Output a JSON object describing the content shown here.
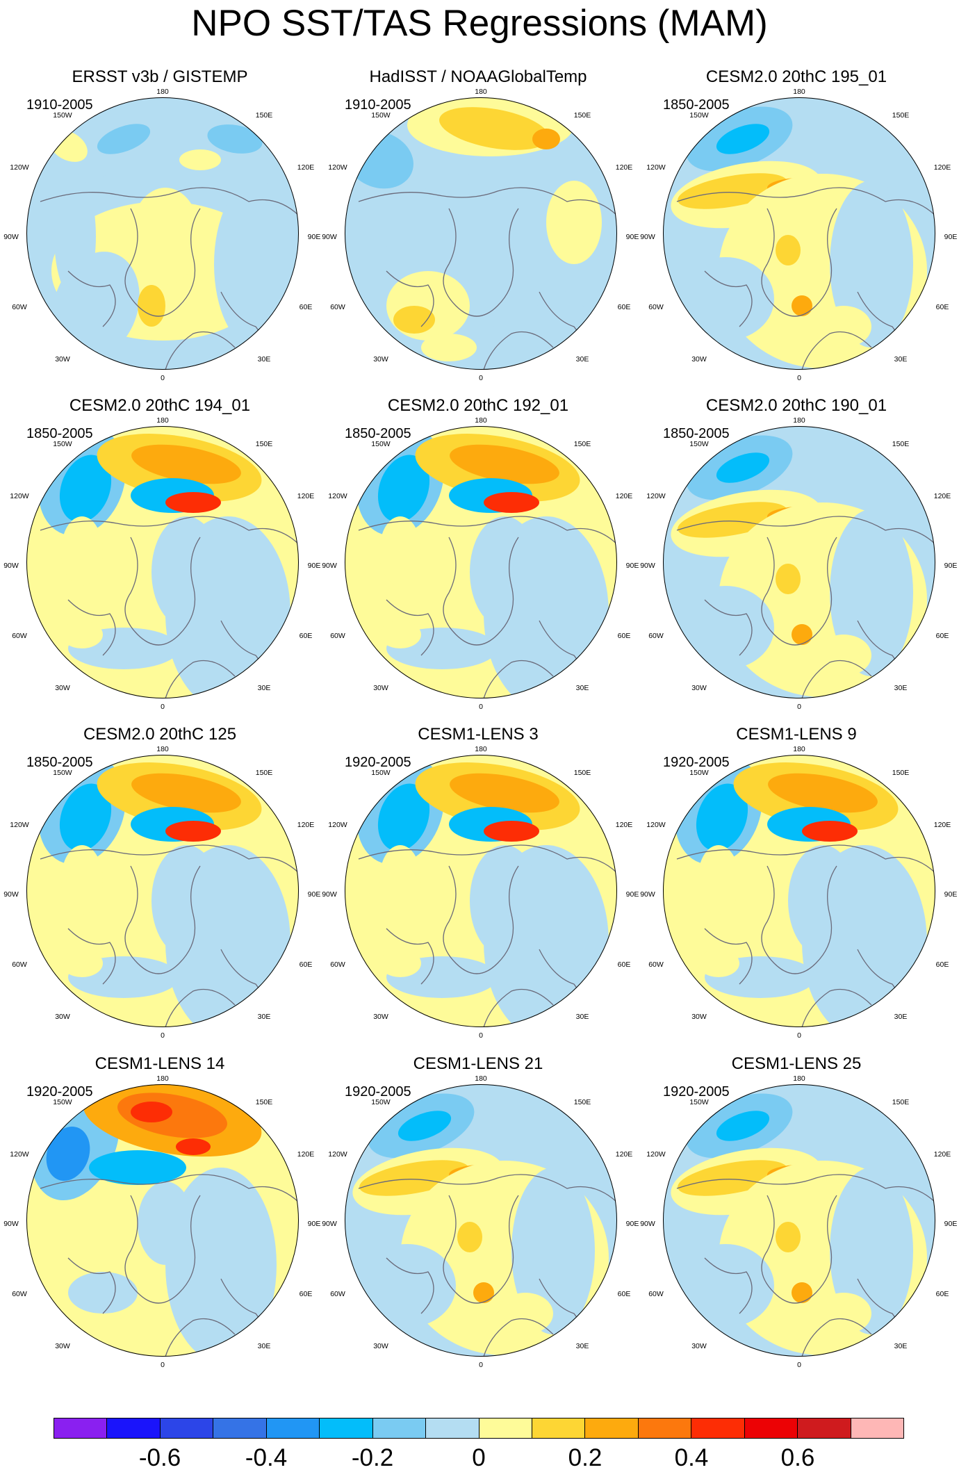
{
  "title": "NPO SST/TAS Regressions (MAM)",
  "panel_labels": {
    "top": "180",
    "tl": "150W",
    "tr": "150E",
    "ul": "120W",
    "ur": "120E",
    "l": "90W",
    "r": "90E",
    "ll": "60W",
    "lr": "60E",
    "bl": "30W",
    "br": "30E",
    "bottom": "0"
  },
  "panels": [
    {
      "title": "ERSST v3b / GISTEMP",
      "period": "1910-2005",
      "pattern": "obs1"
    },
    {
      "title": "HadISST / NOAAGlobalTemp",
      "period": "1910-2005",
      "pattern": "obs2"
    },
    {
      "title": "CESM2.0 20thC 195_01",
      "period": "1850-2005",
      "pattern": "modelA"
    },
    {
      "title": "CESM2.0 20thC 194_01",
      "period": "1850-2005",
      "pattern": "modelB"
    },
    {
      "title": "CESM2.0 20thC 192_01",
      "period": "1850-2005",
      "pattern": "modelB"
    },
    {
      "title": "CESM2.0 20thC 190_01",
      "period": "1850-2005",
      "pattern": "modelA"
    },
    {
      "title": "CESM2.0 20thC 125",
      "period": "1850-2005",
      "pattern": "modelB"
    },
    {
      "title": "CESM1-LENS 3",
      "period": "1920-2005",
      "pattern": "modelB"
    },
    {
      "title": "CESM1-LENS 9",
      "period": "1920-2005",
      "pattern": "modelB"
    },
    {
      "title": "CESM1-LENS 14",
      "period": "1920-2005",
      "pattern": "modelC"
    },
    {
      "title": "CESM1-LENS 21",
      "period": "1920-2005",
      "pattern": "modelA"
    },
    {
      "title": "CESM1-LENS 25",
      "period": "1920-2005",
      "pattern": "modelA"
    }
  ],
  "colorbar": {
    "colors": [
      "#8a20f0",
      "#1a14fb",
      "#2c45e8",
      "#3573e6",
      "#2196f4",
      "#03bdfa",
      "#7acbf2",
      "#b4ddf2",
      "#fefb99",
      "#fdd634",
      "#fdaa0e",
      "#fc780d",
      "#fd2d05",
      "#ec0205",
      "#cf1b1e",
      "#feb7b6"
    ],
    "labels": [
      "-0.6",
      "-0.4",
      "-0.2",
      "0",
      "0.2",
      "0.4",
      "0.6"
    ]
  }
}
